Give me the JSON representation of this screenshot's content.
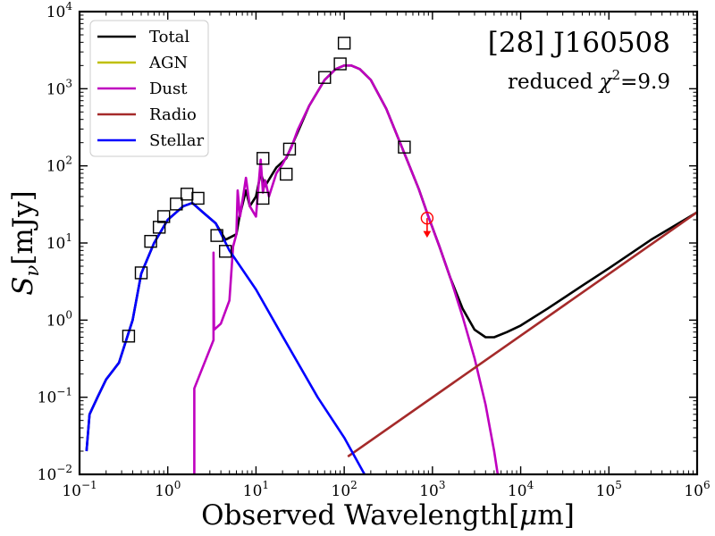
{
  "chart_data": {
    "type": "line",
    "title": "[28] J160508",
    "annotation": "reduced χ²=9.9",
    "annotation_prefix": "reduced ",
    "annotation_chi": "χ",
    "annotation_exp": "2",
    "annotation_value": "=9.9",
    "xlabel": "Observed Wavelength[μm]",
    "xlabel_main": "Observed Wavelength[",
    "xlabel_mu": "μ",
    "xlabel_unit": "m]",
    "ylabel": "Sν[mJy]",
    "ylabel_s": "S",
    "ylabel_nu": "ν",
    "ylabel_unit": "[mJy]",
    "xscale": "log",
    "yscale": "log",
    "xlim": [
      0.1,
      1000000
    ],
    "ylim": [
      0.01,
      10000
    ],
    "legend_position": "upper-left",
    "x_ticks": [
      {
        "value": 0.1,
        "base": "10",
        "exp": "−1"
      },
      {
        "value": 1,
        "base": "10",
        "exp": "0"
      },
      {
        "value": 10,
        "base": "10",
        "exp": "1"
      },
      {
        "value": 100,
        "base": "10",
        "exp": "2"
      },
      {
        "value": 1000,
        "base": "10",
        "exp": "3"
      },
      {
        "value": 10000,
        "base": "10",
        "exp": "4"
      },
      {
        "value": 100000,
        "base": "10",
        "exp": "5"
      },
      {
        "value": 1000000,
        "base": "10",
        "exp": "6"
      }
    ],
    "y_ticks": [
      {
        "value": 0.01,
        "base": "10",
        "exp": "−2"
      },
      {
        "value": 0.1,
        "base": "10",
        "exp": "−1"
      },
      {
        "value": 1,
        "base": "10",
        "exp": "0"
      },
      {
        "value": 10,
        "base": "10",
        "exp": "1"
      },
      {
        "value": 100,
        "base": "10",
        "exp": "2"
      },
      {
        "value": 1000,
        "base": "10",
        "exp": "3"
      },
      {
        "value": 10000,
        "base": "10",
        "exp": "4"
      }
    ],
    "series": [
      {
        "name": "Total",
        "color": "#000000",
        "points": [
          [
            0.12,
            0.02
          ],
          [
            0.13,
            0.06
          ],
          [
            0.16,
            0.1
          ],
          [
            0.2,
            0.17
          ],
          [
            0.28,
            0.28
          ],
          [
            0.4,
            1.0
          ],
          [
            0.5,
            4.0
          ],
          [
            0.7,
            10
          ],
          [
            1.0,
            20
          ],
          [
            1.5,
            30
          ],
          [
            1.9,
            33
          ],
          [
            2.5,
            25
          ],
          [
            3.5,
            18
          ],
          [
            4.5,
            11
          ],
          [
            6,
            13
          ],
          [
            6.5,
            22
          ],
          [
            7.7,
            48
          ],
          [
            8.5,
            30
          ],
          [
            10,
            40
          ],
          [
            11.3,
            80
          ],
          [
            12.7,
            55
          ],
          [
            17,
            95
          ],
          [
            22,
            125
          ],
          [
            30,
            280
          ],
          [
            40,
            600
          ],
          [
            60,
            1300
          ],
          [
            80,
            1800
          ],
          [
            100,
            2000
          ],
          [
            120,
            2000
          ],
          [
            150,
            1800
          ],
          [
            200,
            1300
          ],
          [
            300,
            550
          ],
          [
            500,
            130
          ],
          [
            700,
            50
          ],
          [
            900,
            22
          ],
          [
            1200,
            9
          ],
          [
            1600,
            3.5
          ],
          [
            2200,
            1.4
          ],
          [
            3000,
            0.75
          ],
          [
            4000,
            0.6
          ],
          [
            5000,
            0.6
          ],
          [
            7000,
            0.7
          ],
          [
            10000,
            0.85
          ],
          [
            20000,
            1.4
          ],
          [
            50000,
            2.8
          ],
          [
            100000,
            4.7
          ],
          [
            300000,
            11
          ],
          [
            1000000,
            25
          ]
        ]
      },
      {
        "name": "AGN",
        "color": "#bfbf00",
        "points": []
      },
      {
        "name": "Dust",
        "color": "#bf00bf",
        "points": [
          [
            2.0,
            0.01
          ],
          [
            2.0,
            0.13
          ],
          [
            3.3,
            0.55
          ],
          [
            3.3,
            7.5
          ],
          [
            3.35,
            0.75
          ],
          [
            4,
            0.9
          ],
          [
            5,
            1.8
          ],
          [
            5.5,
            9
          ],
          [
            6,
            13
          ],
          [
            6.2,
            48
          ],
          [
            6.6,
            22
          ],
          [
            7.7,
            70
          ],
          [
            8.5,
            30
          ],
          [
            10,
            22
          ],
          [
            11.3,
            120
          ],
          [
            12,
            45
          ],
          [
            12.7,
            65
          ],
          [
            14,
            40
          ],
          [
            17,
            80
          ],
          [
            20,
            105
          ],
          [
            25,
            170
          ],
          [
            30,
            300
          ],
          [
            40,
            600
          ],
          [
            60,
            1300
          ],
          [
            80,
            1800
          ],
          [
            100,
            2000
          ],
          [
            120,
            2000
          ],
          [
            150,
            1800
          ],
          [
            200,
            1300
          ],
          [
            300,
            550
          ],
          [
            500,
            130
          ],
          [
            700,
            50
          ],
          [
            900,
            22
          ],
          [
            1200,
            9
          ],
          [
            1600,
            3.5
          ],
          [
            2200,
            1.1
          ],
          [
            3000,
            0.32
          ],
          [
            4000,
            0.08
          ],
          [
            5000,
            0.02
          ],
          [
            5500,
            0.01
          ]
        ]
      },
      {
        "name": "Radio",
        "color": "#a52a2a",
        "points": [
          [
            110,
            0.017
          ],
          [
            1000000,
            25
          ]
        ]
      },
      {
        "name": "Stellar",
        "color": "#0000ff",
        "points": [
          [
            0.12,
            0.02
          ],
          [
            0.13,
            0.06
          ],
          [
            0.16,
            0.1
          ],
          [
            0.2,
            0.17
          ],
          [
            0.28,
            0.28
          ],
          [
            0.4,
            1.0
          ],
          [
            0.5,
            4.0
          ],
          [
            0.7,
            10
          ],
          [
            1.0,
            20
          ],
          [
            1.5,
            30
          ],
          [
            1.9,
            33
          ],
          [
            2.5,
            25
          ],
          [
            3.5,
            18
          ],
          [
            5,
            8
          ],
          [
            10,
            2.5
          ],
          [
            20,
            0.62
          ],
          [
            50,
            0.1
          ],
          [
            100,
            0.03
          ],
          [
            170,
            0.01
          ]
        ]
      }
    ],
    "data_points": [
      {
        "x": 0.36,
        "y": 0.62
      },
      {
        "x": 0.5,
        "y": 4.1
      },
      {
        "x": 0.64,
        "y": 10.5
      },
      {
        "x": 0.8,
        "y": 16
      },
      {
        "x": 0.9,
        "y": 22
      },
      {
        "x": 1.25,
        "y": 32
      },
      {
        "x": 1.65,
        "y": 43
      },
      {
        "x": 2.2,
        "y": 38
      },
      {
        "x": 3.6,
        "y": 12.5
      },
      {
        "x": 4.5,
        "y": 7.8
      },
      {
        "x": 12,
        "y": 38
      },
      {
        "x": 12,
        "y": 125
      },
      {
        "x": 22,
        "y": 78
      },
      {
        "x": 24,
        "y": 165
      },
      {
        "x": 60,
        "y": 1400
      },
      {
        "x": 90,
        "y": 2100
      },
      {
        "x": 100,
        "y": 3900
      },
      {
        "x": 480,
        "y": 175
      }
    ],
    "upper_limits": [
      {
        "x": 870,
        "y": 21,
        "color": "#ff0000"
      }
    ]
  }
}
